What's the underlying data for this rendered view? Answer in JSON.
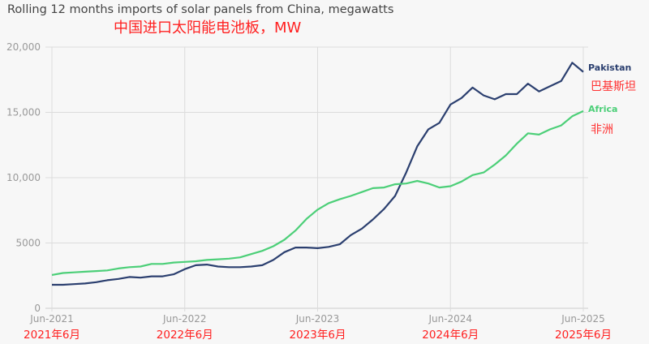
{
  "chart_data": {
    "type": "line",
    "title": "Rolling 12 months imports of solar panels from China, megawatts",
    "subtitle": "中国进口太阳能电池板，MW",
    "xlabel": "",
    "ylabel": "",
    "ylim": [
      0,
      20000
    ],
    "yticks": [
      "0",
      "5000",
      "10,000",
      "15,000",
      "20,000"
    ],
    "xticks": [
      "Jun-2021",
      "Jun-2022",
      "Jun-2023",
      "Jun-2024",
      "Jun-2025"
    ],
    "xticks_cn": [
      "2021年6月",
      "2022年6月",
      "2023年6月",
      "2024年6月",
      "2025年6月"
    ],
    "x_range": [
      "Jun-2021",
      "Jun-2025"
    ],
    "grid": "vertical at year ticks, horizontal at y ticks",
    "legend": "inline labels at line ends (right)",
    "series": [
      {
        "name": "Pakistan",
        "name_cn": "巴基斯坦",
        "color": "#2b3f6f",
        "values": [
          1800,
          1800,
          1850,
          1900,
          2000,
          2150,
          2250,
          2400,
          2350,
          2450,
          2450,
          2600,
          3000,
          3300,
          3350,
          3200,
          3150,
          3150,
          3200,
          3300,
          3700,
          4300,
          4650,
          4650,
          4600,
          4700,
          4900,
          5600,
          6100,
          6800,
          7600,
          8600,
          10400,
          12400,
          13700,
          14200,
          15600,
          16100,
          16900,
          16300,
          16000,
          16400,
          16400,
          17200,
          16600,
          17000,
          17400,
          18800,
          18100
        ]
      },
      {
        "name": "Africa",
        "name_cn": "非洲",
        "color": "#4ccf78",
        "values": [
          2550,
          2700,
          2750,
          2800,
          2850,
          2900,
          3050,
          3150,
          3200,
          3400,
          3400,
          3500,
          3550,
          3600,
          3700,
          3750,
          3800,
          3900,
          4150,
          4400,
          4750,
          5250,
          5950,
          6850,
          7550,
          8050,
          8350,
          8600,
          8900,
          9200,
          9250,
          9500,
          9550,
          9750,
          9550,
          9250,
          9350,
          9700,
          10200,
          10400,
          11000,
          11700,
          12600,
          13400,
          13300,
          13700,
          14000,
          14700,
          15100
        ]
      }
    ]
  }
}
